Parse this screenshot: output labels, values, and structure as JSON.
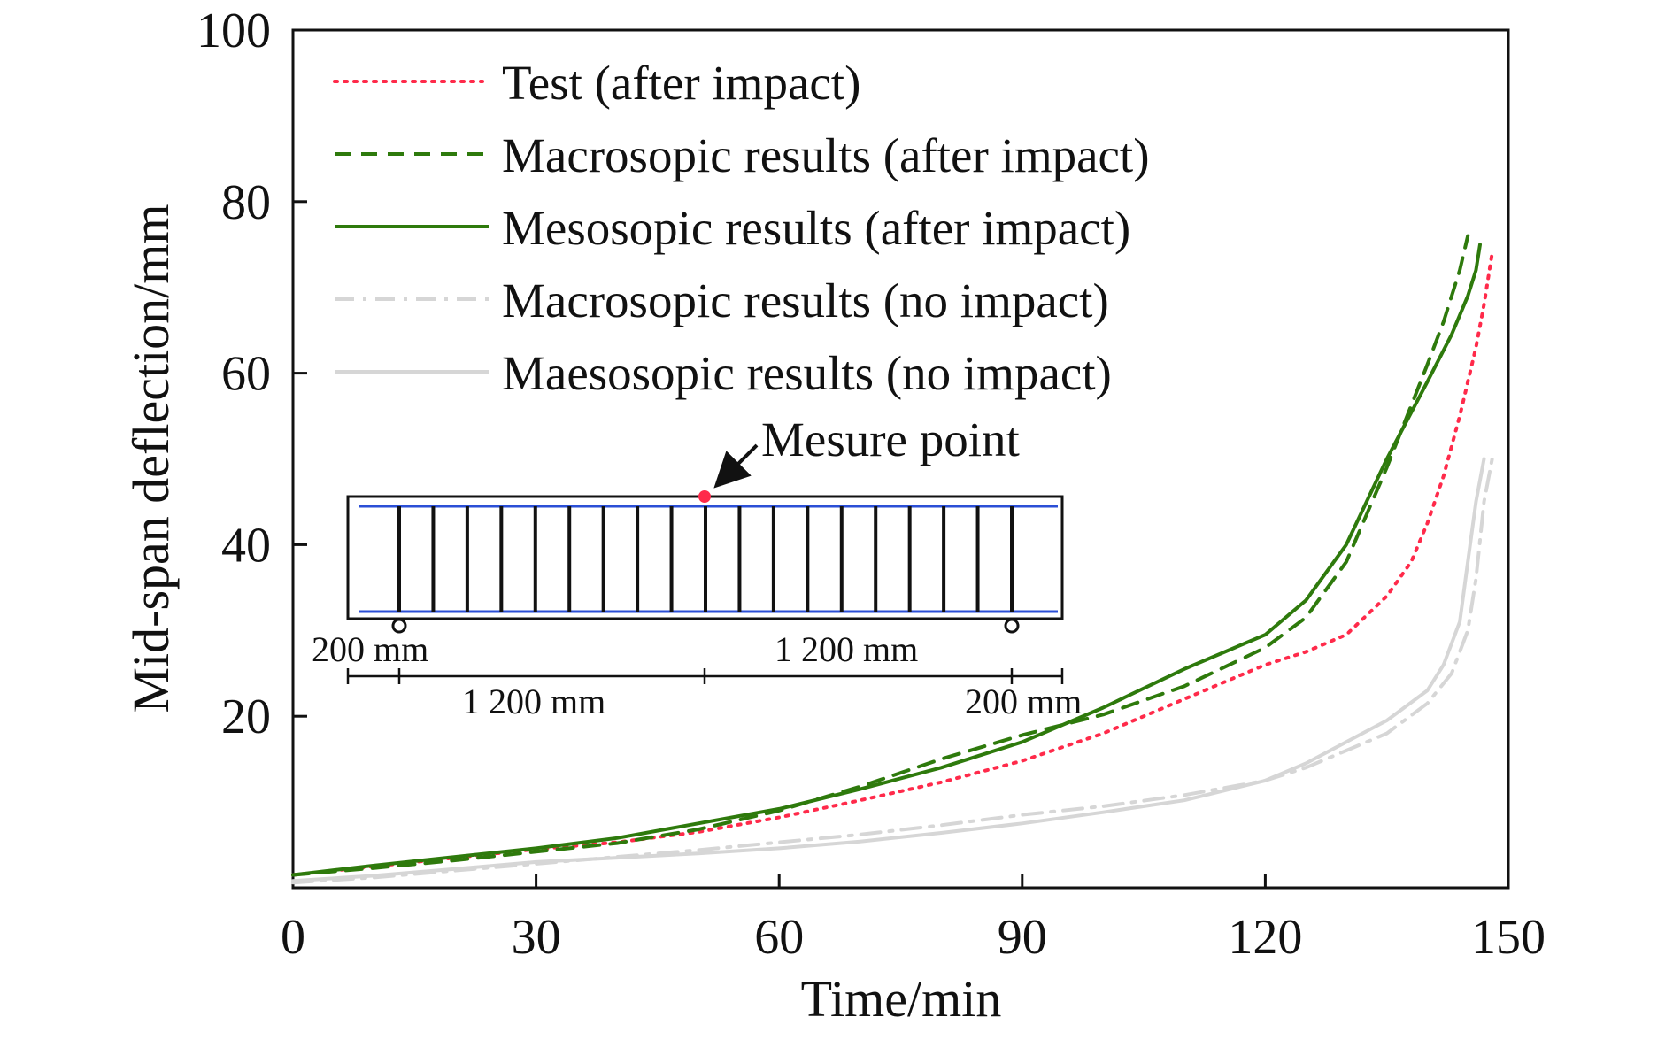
{
  "chart_data": {
    "type": "line",
    "xlabel": "Time/min",
    "ylabel": "Mid-span deflection/mm",
    "xlim": [
      0,
      150
    ],
    "ylim": [
      0,
      100
    ],
    "xticks": [
      0,
      30,
      60,
      90,
      120,
      150
    ],
    "yticks": [
      0,
      20,
      40,
      60,
      80,
      100
    ],
    "x_tick_labels": [
      "0",
      "30",
      "60",
      "90",
      "120",
      "150"
    ],
    "y_tick_labels": [
      "",
      "20",
      "40",
      "60",
      "80",
      "100"
    ],
    "grid": false,
    "legend_position": "top-left",
    "series": [
      {
        "name": "Test (after impact)",
        "color": "#ff2a4a",
        "style": "dotted",
        "x": [
          0,
          10,
          20,
          30,
          40,
          50,
          60,
          70,
          80,
          90,
          100,
          110,
          115,
          120,
          125,
          130,
          135,
          138,
          140,
          142,
          144,
          146,
          147,
          148
        ],
        "y": [
          1.5,
          2.5,
          3.5,
          4.5,
          5.3,
          6.5,
          8.2,
          10.2,
          12.3,
          14.8,
          18.0,
          22.0,
          24.0,
          26.0,
          27.5,
          29.5,
          34.0,
          38.0,
          42.5,
          48.0,
          55.0,
          63.0,
          68.0,
          74.0
        ]
      },
      {
        "name": "Macrosopic results (after impact)",
        "color": "#2e7a0c",
        "style": "dashed",
        "x": [
          0,
          10,
          20,
          30,
          40,
          50,
          60,
          70,
          80,
          90,
          100,
          110,
          120,
          125,
          130,
          135,
          140,
          142,
          144,
          145
        ],
        "y": [
          1.5,
          2.3,
          3.2,
          4.2,
          5.2,
          6.8,
          9.0,
          11.8,
          15.0,
          17.8,
          20.2,
          23.5,
          28.0,
          31.5,
          38.0,
          49.0,
          61.0,
          66.0,
          72.0,
          76.0
        ]
      },
      {
        "name": "Mesosopic results (after impact)",
        "color": "#2e7a0c",
        "style": "solid",
        "x": [
          0,
          10,
          20,
          30,
          40,
          50,
          60,
          70,
          80,
          90,
          100,
          110,
          120,
          125,
          130,
          135,
          140,
          143,
          145,
          146,
          146.5
        ],
        "y": [
          1.5,
          2.6,
          3.6,
          4.6,
          5.8,
          7.5,
          9.2,
          11.5,
          14.0,
          17.0,
          21.0,
          25.5,
          29.5,
          33.5,
          40.0,
          50.0,
          59.0,
          64.5,
          69.0,
          72.0,
          75.0
        ]
      },
      {
        "name": "Macrosopic results (no impact)",
        "color": "#d6d6d6",
        "style": "dash-dot",
        "x": [
          0,
          10,
          20,
          30,
          40,
          50,
          60,
          70,
          80,
          90,
          100,
          110,
          120,
          125,
          130,
          135,
          140,
          143,
          145,
          146,
          147,
          148
        ],
        "y": [
          0.6,
          1.2,
          2.0,
          2.8,
          3.6,
          4.4,
          5.3,
          6.2,
          7.3,
          8.5,
          9.5,
          10.8,
          12.5,
          14.0,
          16.0,
          18.0,
          21.5,
          25.0,
          30.0,
          36.0,
          45.0,
          50.0
        ]
      },
      {
        "name": "Maesosopic results (no impact)",
        "color": "#d6d6d6",
        "style": "solid",
        "x": [
          0,
          10,
          20,
          30,
          40,
          50,
          60,
          70,
          80,
          90,
          100,
          110,
          120,
          125,
          130,
          135,
          140,
          142,
          144,
          145,
          146,
          147
        ],
        "y": [
          0.8,
          1.4,
          2.2,
          3.0,
          3.5,
          4.0,
          4.6,
          5.4,
          6.4,
          7.5,
          8.8,
          10.2,
          12.5,
          14.5,
          17.0,
          19.5,
          23.0,
          26.0,
          31.0,
          38.0,
          45.0,
          50.0
        ]
      }
    ],
    "inset": {
      "annotation": "Mesure point",
      "dims_top": [
        "200 mm",
        "1 200 mm"
      ],
      "dims_bottom": [
        "1 200 mm",
        "200 mm"
      ]
    }
  }
}
